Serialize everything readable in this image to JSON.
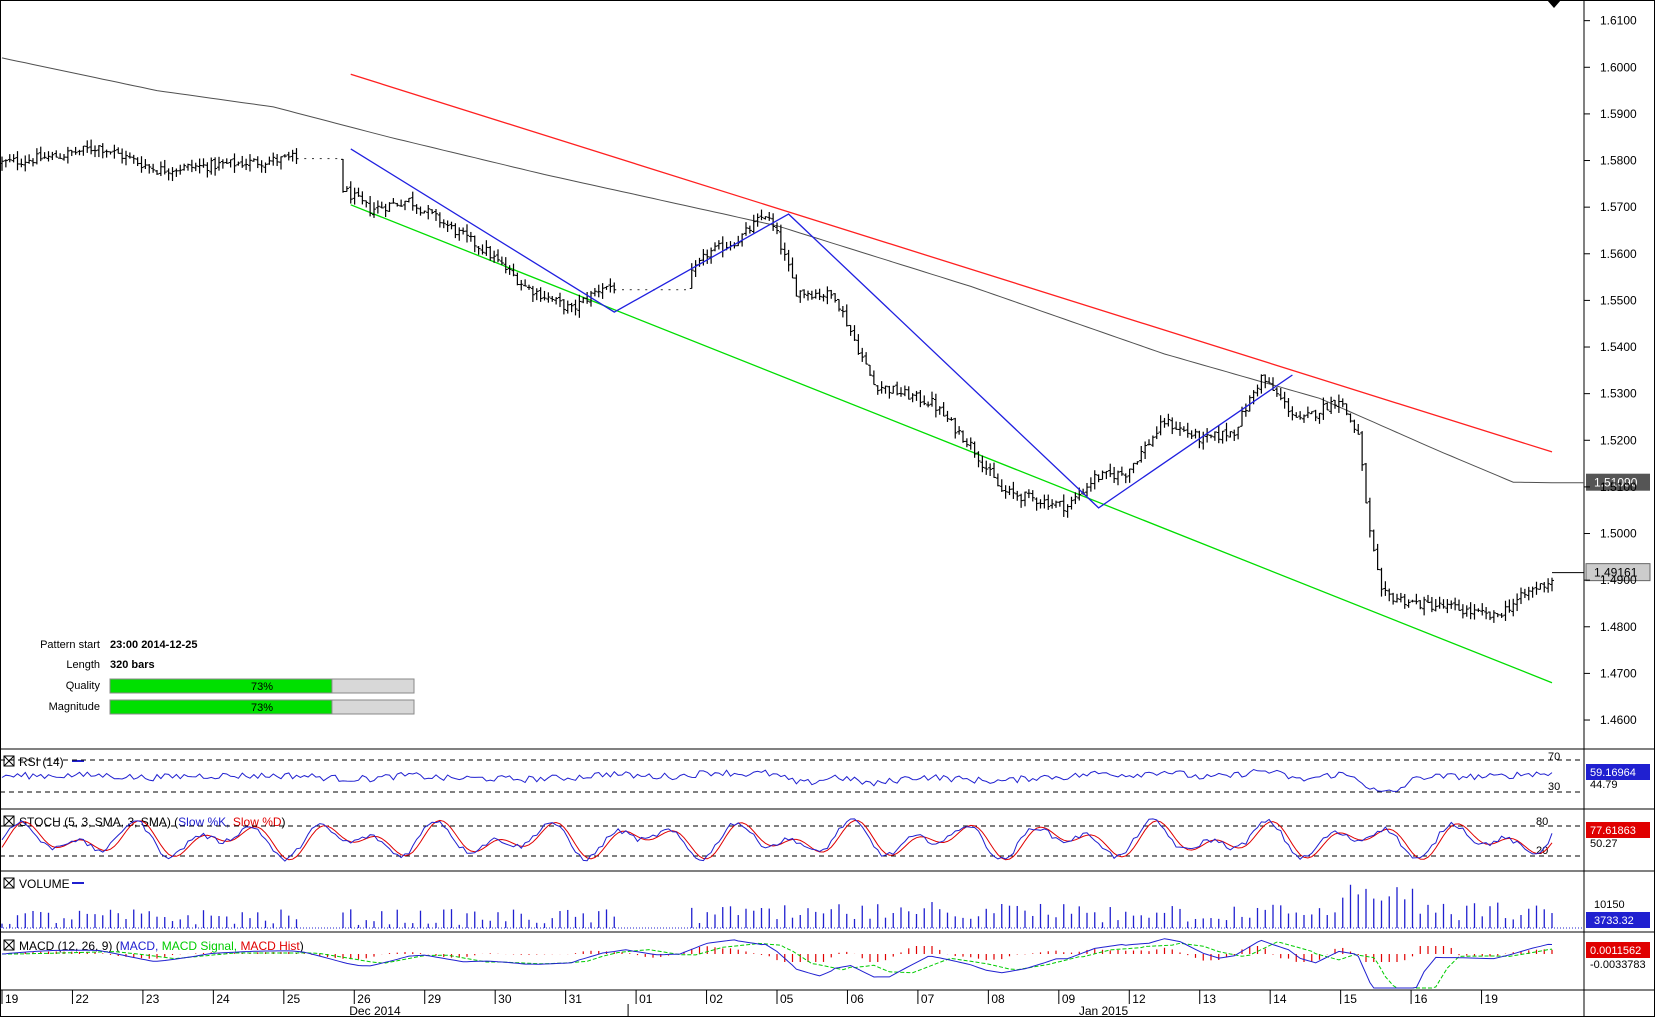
{
  "pattern_info": {
    "start_label": "Pattern start",
    "start_value": "23:00 2014-12-25",
    "length_label": "Length",
    "length_value": "320 bars",
    "quality_label": "Quality",
    "quality_value": "73%",
    "quality_fraction": 0.73,
    "magnitude_label": "Magnitude",
    "magnitude_value": "73%",
    "magnitude_fraction": 0.73
  },
  "panels": {
    "rsi": {
      "title": "RSI (14)",
      "ticks": [
        "70",
        "30"
      ],
      "extra_label": "44.79",
      "current": "59.16964",
      "current_color": "#2020d0"
    },
    "stoch": {
      "title_main": "STOCH (5, 3, SMA, 3, SMA)",
      "title_k": "Slow %K,",
      "title_d": "Slow %D",
      "ticks": [
        "80",
        "20"
      ],
      "extra_label": "50.27",
      "current": "77.61863",
      "current_color": "#e00000"
    },
    "volume": {
      "title": "VOLUME",
      "tick": "10150",
      "current": "3733.32",
      "current_color": "#2020d0"
    },
    "macd": {
      "title_main": "MACD (12, 26, 9)",
      "title_macd": "MACD,",
      "title_signal": "MACD Signal,",
      "title_hist": "MACD Hist",
      "current_top": "0.0011562",
      "current_bottom": "-0.0033783",
      "current_color": "#e00000"
    }
  },
  "colors": {
    "upper_trendline": "#ff2020",
    "lower_trendline": "#00dd00",
    "zigzag": "#2020e0",
    "moving_average": "#505050",
    "bars": "#000000",
    "rsi": "#2020d0",
    "stoch_k": "#2020d0",
    "stoch_d": "#e00000",
    "volume": "#2020d0",
    "macd": "#2020d0",
    "macd_signal": "#00cc00",
    "macd_hist": "#e00000",
    "progress_fill": "#00e000",
    "progress_empty": "#d8d8d8"
  },
  "chart_data": {
    "type": "ohlc",
    "instrument_pattern": "descending channel",
    "y_axis": {
      "ticks": [
        "1.6100",
        "1.6000",
        "1.5900",
        "1.5800",
        "1.5700",
        "1.5600",
        "1.5500",
        "1.5400",
        "1.5300",
        "1.5200",
        "1.5100",
        "1.5000",
        "1.4900",
        "1.4800",
        "1.4700",
        "1.4600"
      ],
      "ylim": [
        1.454,
        1.614
      ],
      "current_price_label": "1.49161",
      "ma_price_label": "1.51090"
    },
    "x_axis": {
      "day_labels": [
        "19",
        "22",
        "23",
        "24",
        "25",
        "26",
        "29",
        "30",
        "31",
        "01",
        "02",
        "05",
        "06",
        "07",
        "08",
        "09",
        "12",
        "13",
        "14",
        "15",
        "16",
        "19"
      ],
      "month_labels": [
        "Dec 2014",
        "Jan 2015"
      ]
    },
    "price_path": [
      {
        "bar": 0,
        "price": 1.5795
      },
      {
        "bar": 15,
        "price": 1.581
      },
      {
        "bar": 25,
        "price": 1.583
      },
      {
        "bar": 40,
        "price": 1.578
      },
      {
        "bar": 55,
        "price": 1.579
      },
      {
        "bar": 70,
        "price": 1.58
      },
      {
        "bar": 75,
        "price": 1.5805
      },
      {
        "bar": 78,
        "price": 1.58
      },
      {
        "bar": 95,
        "price": 1.5695
      },
      {
        "bar": 105,
        "price": 1.5715
      },
      {
        "bar": 125,
        "price": 1.5605
      },
      {
        "bar": 135,
        "price": 1.553
      },
      {
        "bar": 147,
        "price": 1.548
      },
      {
        "bar": 155,
        "price": 1.553
      },
      {
        "bar": 160,
        "price": 1.553
      },
      {
        "bar": 175,
        "price": 1.552
      },
      {
        "bar": 182,
        "price": 1.56
      },
      {
        "bar": 190,
        "price": 1.563
      },
      {
        "bar": 197,
        "price": 1.5685
      },
      {
        "bar": 200,
        "price": 1.564
      },
      {
        "bar": 205,
        "price": 1.552
      },
      {
        "bar": 215,
        "price": 1.551
      },
      {
        "bar": 225,
        "price": 1.532
      },
      {
        "bar": 240,
        "price": 1.528
      },
      {
        "bar": 250,
        "price": 1.519
      },
      {
        "bar": 258,
        "price": 1.509
      },
      {
        "bar": 275,
        "price": 1.5058
      },
      {
        "bar": 282,
        "price": 1.512
      },
      {
        "bar": 290,
        "price": 1.513
      },
      {
        "bar": 300,
        "price": 1.524
      },
      {
        "bar": 310,
        "price": 1.52
      },
      {
        "bar": 318,
        "price": 1.522
      },
      {
        "bar": 325,
        "price": 1.5335
      },
      {
        "bar": 335,
        "price": 1.524
      },
      {
        "bar": 345,
        "price": 1.529
      },
      {
        "bar": 350,
        "price": 1.521
      },
      {
        "bar": 353,
        "price": 1.5
      },
      {
        "bar": 356,
        "price": 1.487
      },
      {
        "bar": 365,
        "price": 1.485
      },
      {
        "bar": 375,
        "price": 1.484
      },
      {
        "bar": 385,
        "price": 1.482
      },
      {
        "bar": 395,
        "price": 1.488
      },
      {
        "bar": 400,
        "price": 1.49
      }
    ],
    "gaps": [
      [
        76,
        88
      ],
      [
        158,
        178
      ]
    ],
    "moving_average": [
      {
        "bar": 0,
        "price": 1.602
      },
      {
        "bar": 40,
        "price": 1.595
      },
      {
        "bar": 70,
        "price": 1.5915
      },
      {
        "bar": 100,
        "price": 1.585
      },
      {
        "bar": 140,
        "price": 1.577
      },
      {
        "bar": 200,
        "price": 1.566
      },
      {
        "bar": 250,
        "price": 1.553
      },
      {
        "bar": 300,
        "price": 1.5385
      },
      {
        "bar": 340,
        "price": 1.529
      },
      {
        "bar": 370,
        "price": 1.518
      },
      {
        "bar": 390,
        "price": 1.511
      },
      {
        "bar": 400,
        "price": 1.5109
      }
    ],
    "upper_trendline": [
      {
        "bar": 90,
        "price": 1.5985
      },
      {
        "bar": 400,
        "price": 1.5175
      }
    ],
    "lower_trendline": [
      {
        "bar": 90,
        "price": 1.5705
      },
      {
        "bar": 400,
        "price": 1.468
      }
    ],
    "zigzag": [
      {
        "bar": 90,
        "price": 1.5825
      },
      {
        "bar": 158,
        "price": 1.5475
      },
      {
        "bar": 203,
        "price": 1.5685
      },
      {
        "bar": 283,
        "price": 1.5055
      },
      {
        "bar": 333,
        "price": 1.534
      }
    ],
    "indicators": {
      "rsi": {
        "levels": [
          70,
          30
        ],
        "current": 59.16964
      },
      "stoch": {
        "levels": [
          80,
          20
        ],
        "current": 77.61863
      },
      "volume": {
        "current": 3733.32
      },
      "macd": {
        "macd": 0.0011562,
        "signal": -0.0033783
      }
    }
  }
}
